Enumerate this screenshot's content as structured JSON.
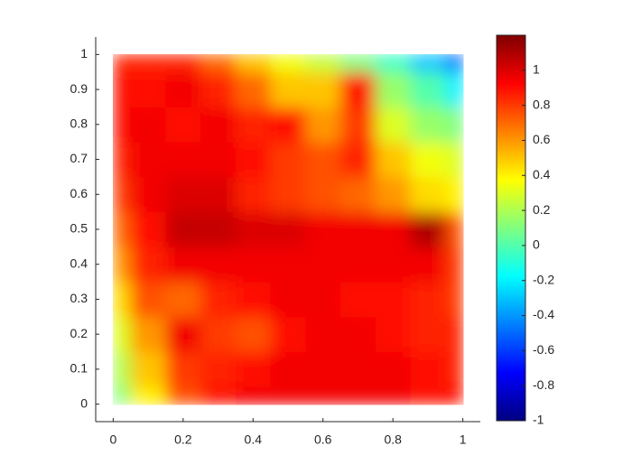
{
  "chart_data": {
    "type": "heatmap",
    "x": [
      0,
      0.1,
      0.2,
      0.3,
      0.4,
      0.5,
      0.6,
      0.7,
      0.8,
      0.9,
      1
    ],
    "y": [
      0,
      0.1,
      0.2,
      0.3,
      0.4,
      0.5,
      0.6,
      0.7,
      0.8,
      0.9,
      1
    ],
    "z": [
      [
        0.1,
        0.4,
        0.75,
        0.9,
        0.95,
        0.95,
        0.95,
        0.95,
        0.95,
        0.9,
        0.9
      ],
      [
        0.2,
        0.5,
        0.8,
        0.85,
        0.9,
        0.95,
        0.95,
        0.95,
        0.95,
        0.9,
        0.85
      ],
      [
        0.3,
        0.6,
        0.95,
        0.8,
        0.75,
        0.9,
        0.95,
        0.95,
        0.9,
        0.85,
        0.85
      ],
      [
        0.45,
        0.75,
        0.7,
        0.85,
        0.9,
        0.95,
        0.95,
        0.9,
        0.9,
        0.85,
        0.8
      ],
      [
        0.6,
        0.85,
        0.95,
        0.95,
        0.95,
        0.95,
        0.95,
        0.95,
        0.95,
        0.95,
        0.8
      ],
      [
        0.7,
        0.9,
        1.05,
        1.05,
        1.0,
        1.0,
        0.95,
        0.95,
        0.95,
        1.1,
        0.75
      ],
      [
        0.8,
        0.95,
        1.0,
        1.0,
        0.85,
        0.8,
        0.75,
        0.7,
        0.6,
        0.45,
        0.4
      ],
      [
        0.85,
        0.95,
        0.95,
        0.95,
        0.9,
        0.8,
        0.75,
        0.85,
        0.5,
        0.35,
        0.3
      ],
      [
        0.9,
        0.95,
        0.9,
        0.95,
        0.85,
        0.9,
        0.6,
        0.8,
        0.3,
        0.15,
        0.1
      ],
      [
        0.9,
        0.9,
        0.95,
        0.85,
        0.7,
        0.5,
        0.5,
        0.9,
        0.15,
        0.0,
        -0.2
      ],
      [
        0.85,
        0.85,
        0.85,
        0.7,
        0.5,
        0.35,
        0.25,
        0.1,
        -0.05,
        -0.3,
        -0.5
      ]
    ],
    "colormap": "jet",
    "xlim": [
      -0.05,
      1.05
    ],
    "ylim": [
      -0.05,
      1.05
    ],
    "xticks": [
      0,
      0.2,
      0.4,
      0.6,
      0.8,
      1
    ],
    "yticks": [
      0,
      0.1,
      0.2,
      0.3,
      0.4,
      0.5,
      0.6,
      0.7,
      0.8,
      0.9,
      1
    ],
    "clim": [
      -1,
      1.2
    ],
    "cticks": [
      -1,
      -0.8,
      -0.6,
      -0.4,
      -0.2,
      0,
      0.2,
      0.4,
      0.6,
      0.8,
      1
    ]
  }
}
